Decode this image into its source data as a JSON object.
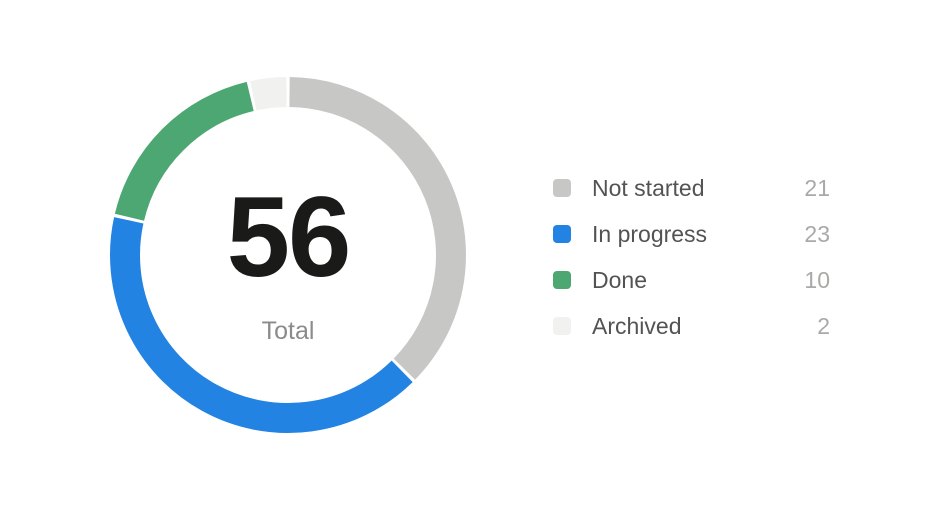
{
  "page": {
    "background": "#ffffff"
  },
  "chart_data": {
    "type": "pie",
    "subtype": "donut",
    "title": "",
    "categories": [
      "Not started",
      "In progress",
      "Done",
      "Archived"
    ],
    "values": [
      21,
      23,
      10,
      2
    ],
    "colors": [
      "#C7C7C5",
      "#2383E2",
      "#4DA772",
      "#F1F1EF"
    ],
    "total": 56,
    "center_label": "56",
    "center_sublabel": "Total",
    "start_angle_deg": 0,
    "direction": "clockwise",
    "donut_thickness_px": 30,
    "segment_gap_deg": 1.1,
    "legend_position": "right",
    "grid": false
  }
}
